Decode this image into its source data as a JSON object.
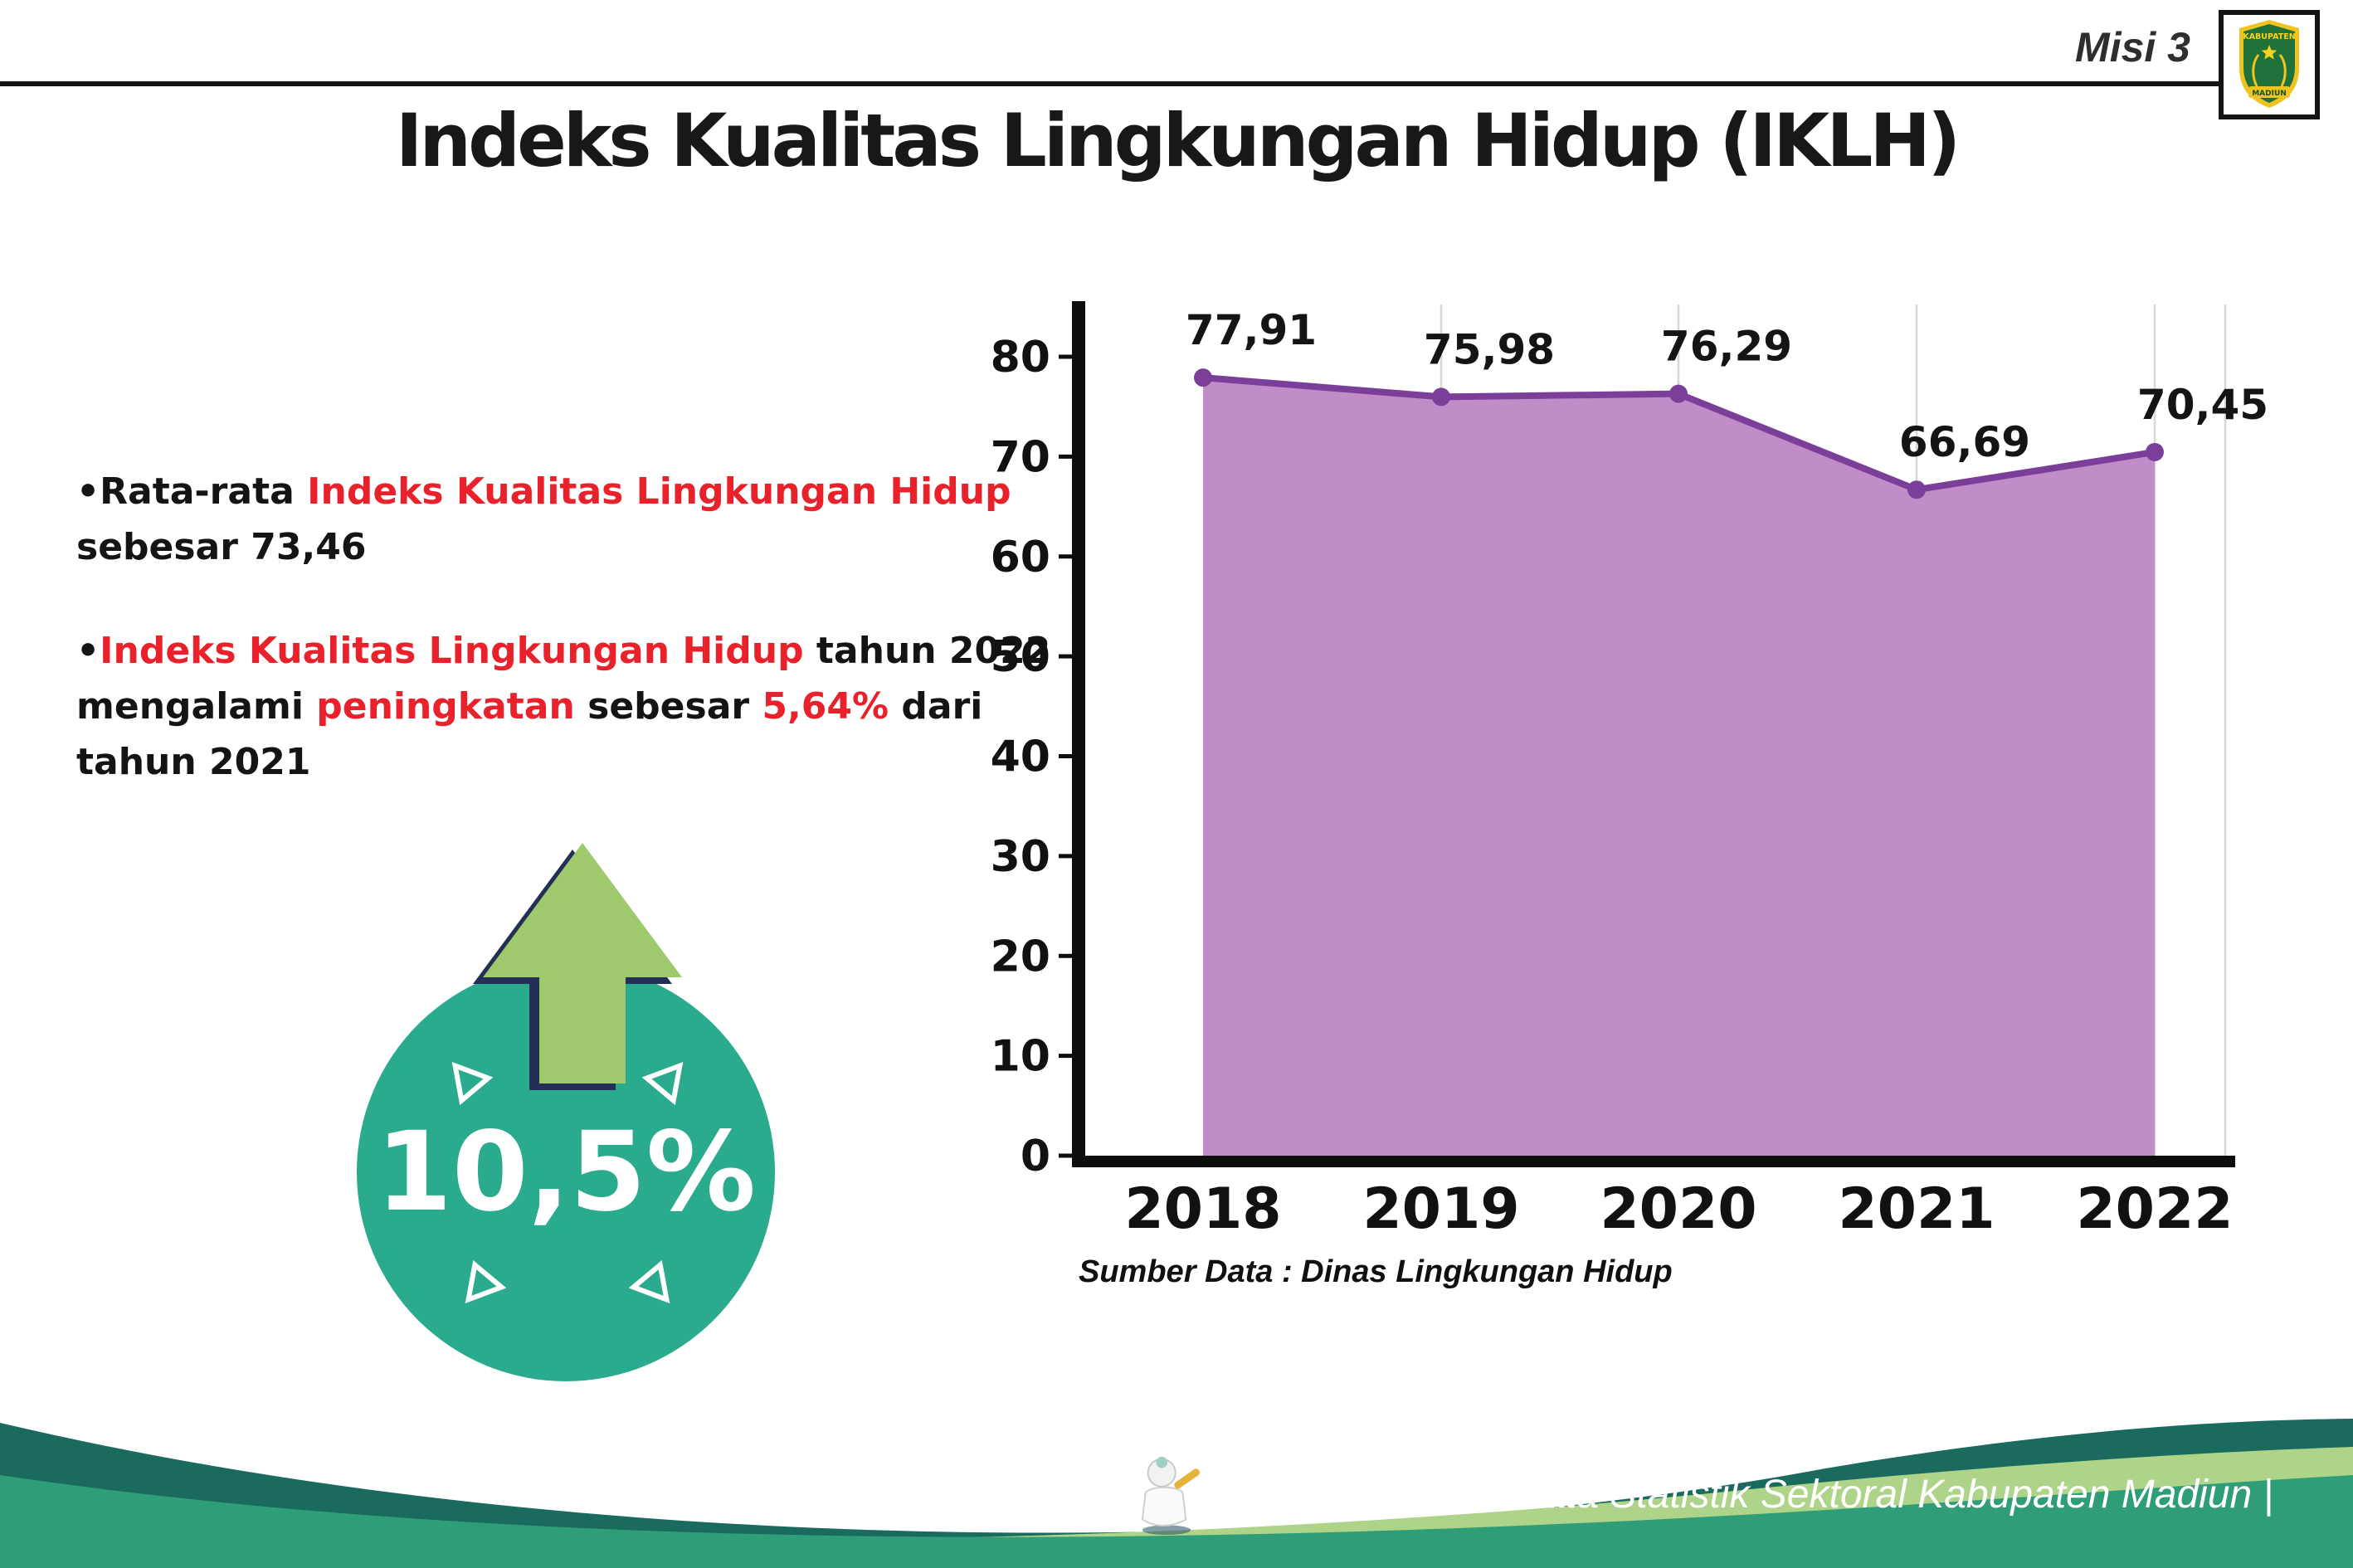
{
  "header": {
    "misi_label": "Misi 3",
    "title": "Indeks Kualitas Lingkungan Hidup (IKLH)",
    "logo_text_top": "KABUPATEN",
    "logo_text_bottom": "MADIUN"
  },
  "bullets": {
    "b1": {
      "parts": [
        "•Rata-rata ",
        "Indeks Kualitas Lingkungan Hidup",
        " sebesar 73,46"
      ]
    },
    "b2": {
      "parts": [
        "•",
        "Indeks Kualitas Lingkungan Hidup",
        " tahun 2022 mengalami ",
        "peningkatan",
        " sebesar ",
        "5,64%",
        " dari tahun 2021"
      ]
    }
  },
  "badge": {
    "value": "10,5%"
  },
  "chart_data": {
    "type": "area",
    "title": "Indeks Kualitas Lingkungan Hidup (IKLH)",
    "categories": [
      "2018",
      "2019",
      "2020",
      "2021",
      "2022"
    ],
    "values": [
      77.91,
      75.98,
      76.29,
      66.69,
      70.45
    ],
    "point_labels": [
      "77,91",
      "75,98",
      "76,29",
      "66,69",
      "70,45"
    ],
    "xlabel": "",
    "ylabel": "",
    "ylim": [
      0,
      80
    ],
    "yticks": [
      0,
      10,
      20,
      30,
      40,
      50,
      60,
      70,
      80
    ],
    "grid": "vertical-only",
    "legend": "none",
    "source": "Sumber Data : Dinas Lingkungan Hidup",
    "colors": {
      "area": "#c08dc9",
      "line": "#7b3f9a",
      "axis": "#0d0d0d",
      "grid": "#d7d7d7"
    }
  },
  "footer": {
    "text": "Media Infografis Data Statistik Sektoral Kabupaten Madiun |"
  }
}
